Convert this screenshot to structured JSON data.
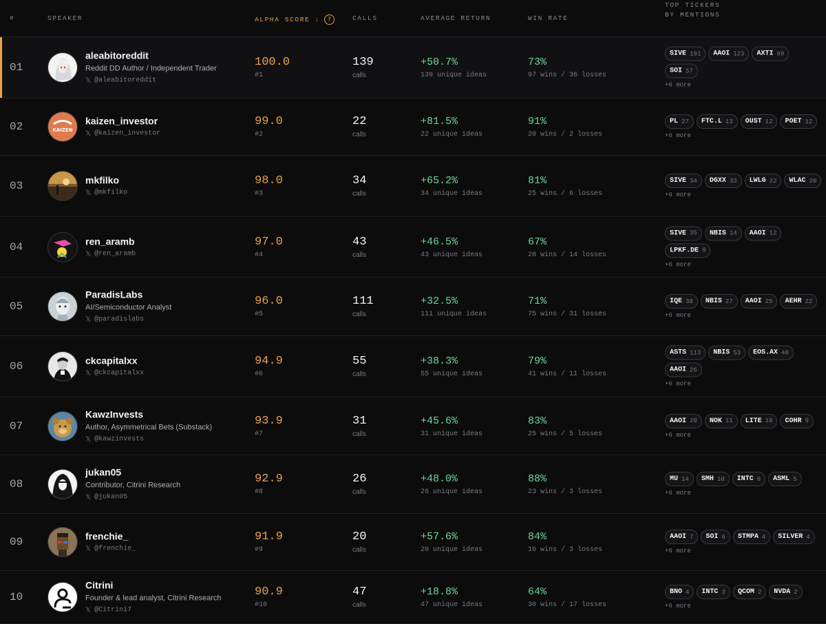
{
  "colors": {
    "accent": "#e9a24a",
    "positive": "#6fd69a",
    "background": "#0c0c0d",
    "muted": "#7b7b80"
  },
  "header": {
    "rank": "#",
    "speaker": "SPEAKER",
    "alpha_score": "ALPHA SCORE ↓",
    "calls": "CALLS",
    "average_return": "AVERAGE RETURN",
    "win_rate": "WIN RATE",
    "top_tickers": "TOP TICKERS",
    "by_mentions": "BY MENTIONS"
  },
  "rows": [
    {
      "rank": "01",
      "name": "aleabitoreddit",
      "desc": "Reddit DD Author / Independent Trader",
      "handle": "@aleabitoreddit",
      "score": "100.0",
      "score_rank": "#1",
      "calls": "139",
      "calls_label": "calls",
      "ret": "+50.7%",
      "ret_sub": "139 unique ideas",
      "win": "73%",
      "win_sub": "97 wins / 36 losses",
      "tickers": [
        {
          "s": "SIVE",
          "n": "191"
        },
        {
          "s": "AAOI",
          "n": "123"
        },
        {
          "s": "AXTI",
          "n": "69"
        },
        {
          "s": "SOI",
          "n": "57"
        }
      ],
      "more": "+6 more"
    },
    {
      "rank": "02",
      "name": "kaizen_investor",
      "desc": "",
      "handle": "@kaizen_investor",
      "score": "99.0",
      "score_rank": "#2",
      "calls": "22",
      "calls_label": "calls",
      "ret": "+81.5%",
      "ret_sub": "22 unique ideas",
      "win": "91%",
      "win_sub": "20 wins / 2 losses",
      "tickers": [
        {
          "s": "PL",
          "n": "27"
        },
        {
          "s": "FTC.L",
          "n": "13"
        },
        {
          "s": "OUST",
          "n": "12"
        },
        {
          "s": "POET",
          "n": "12"
        }
      ],
      "more": "+6 more"
    },
    {
      "rank": "03",
      "name": "mkfilko",
      "desc": "",
      "handle": "@mkfilko",
      "score": "98.0",
      "score_rank": "#3",
      "calls": "34",
      "calls_label": "calls",
      "ret": "+65.2%",
      "ret_sub": "34 unique ideas",
      "win": "81%",
      "win_sub": "25 wins / 6 losses",
      "tickers": [
        {
          "s": "SIVE",
          "n": "34"
        },
        {
          "s": "DGXX",
          "n": "33"
        },
        {
          "s": "LWLG",
          "n": "22"
        },
        {
          "s": "WLAC",
          "n": "20"
        }
      ],
      "more": "+6 more"
    },
    {
      "rank": "04",
      "name": "ren_aramb",
      "desc": "",
      "handle": "@ren_aramb",
      "score": "97.0",
      "score_rank": "#4",
      "calls": "43",
      "calls_label": "calls",
      "ret": "+46.5%",
      "ret_sub": "43 unique ideas",
      "win": "67%",
      "win_sub": "28 wins / 14 losses",
      "tickers": [
        {
          "s": "SIVE",
          "n": "35"
        },
        {
          "s": "NBIS",
          "n": "14"
        },
        {
          "s": "AAOI",
          "n": "12"
        },
        {
          "s": "LPKF.DE",
          "n": "9"
        }
      ],
      "more": "+6 more"
    },
    {
      "rank": "05",
      "name": "ParadisLabs",
      "desc": "AI/Semiconductor Analyst",
      "handle": "@paradislabs",
      "score": "96.0",
      "score_rank": "#5",
      "calls": "111",
      "calls_label": "calls",
      "ret": "+32.5%",
      "ret_sub": "111 unique ideas",
      "win": "71%",
      "win_sub": "75 wins / 31 losses",
      "tickers": [
        {
          "s": "IQE",
          "n": "38"
        },
        {
          "s": "NBIS",
          "n": "27"
        },
        {
          "s": "AAOI",
          "n": "25"
        },
        {
          "s": "AEHR",
          "n": "22"
        }
      ],
      "more": "+6 more"
    },
    {
      "rank": "06",
      "name": "ckcapitalxx",
      "desc": "",
      "handle": "@ckcapitalxx",
      "score": "94.9",
      "score_rank": "#6",
      "calls": "55",
      "calls_label": "calls",
      "ret": "+38.3%",
      "ret_sub": "55 unique ideas",
      "win": "79%",
      "win_sub": "41 wins / 11 losses",
      "tickers": [
        {
          "s": "ASTS",
          "n": "113"
        },
        {
          "s": "NBIS",
          "n": "53"
        },
        {
          "s": "EOS.AX",
          "n": "46"
        },
        {
          "s": "AAOI",
          "n": "26"
        }
      ],
      "more": "+6 more"
    },
    {
      "rank": "07",
      "name": "KawzInvests",
      "desc": "Author, Asymmetrical Bets (Substack)",
      "handle": "@kawzinvests",
      "score": "93.9",
      "score_rank": "#7",
      "calls": "31",
      "calls_label": "calls",
      "ret": "+45.6%",
      "ret_sub": "31 unique ideas",
      "win": "83%",
      "win_sub": "25 wins / 5 losses",
      "tickers": [
        {
          "s": "AAOI",
          "n": "20"
        },
        {
          "s": "NOK",
          "n": "11"
        },
        {
          "s": "LITE",
          "n": "10"
        },
        {
          "s": "COHR",
          "n": "9"
        }
      ],
      "more": "+6 more"
    },
    {
      "rank": "08",
      "name": "jukan05",
      "desc": "Contributor, Citrini Research",
      "handle": "@jukan05",
      "score": "92.9",
      "score_rank": "#8",
      "calls": "26",
      "calls_label": "calls",
      "ret": "+48.0%",
      "ret_sub": "26 unique ideas",
      "win": "88%",
      "win_sub": "23 wins / 3 losses",
      "tickers": [
        {
          "s": "MU",
          "n": "14"
        },
        {
          "s": "SMH",
          "n": "10"
        },
        {
          "s": "INTC",
          "n": "6"
        },
        {
          "s": "ASML",
          "n": "5"
        }
      ],
      "more": "+6 more"
    },
    {
      "rank": "09",
      "name": "frenchie_",
      "desc": "",
      "handle": "@frenchie_",
      "score": "91.9",
      "score_rank": "#9",
      "calls": "20",
      "calls_label": "calls",
      "ret": "+57.6%",
      "ret_sub": "20 unique ideas",
      "win": "84%",
      "win_sub": "16 wins / 3 losses",
      "tickers": [
        {
          "s": "AAOI",
          "n": "7"
        },
        {
          "s": "SOI",
          "n": "6"
        },
        {
          "s": "STMPA",
          "n": "4"
        },
        {
          "s": "SILVER",
          "n": "4"
        }
      ],
      "more": "+6 more"
    },
    {
      "rank": "10",
      "name": "Citrini",
      "desc": "Founder & lead analyst, Citrini Research",
      "handle": "@Citrini7",
      "score": "90.9",
      "score_rank": "#10",
      "calls": "47",
      "calls_label": "calls",
      "ret": "+18.8%",
      "ret_sub": "47 unique ideas",
      "win": "64%",
      "win_sub": "30 wins / 17 losses",
      "tickers": [
        {
          "s": "BNO",
          "n": "4"
        },
        {
          "s": "INTC",
          "n": "3"
        },
        {
          "s": "QCOM",
          "n": "2"
        },
        {
          "s": "NVDA",
          "n": "2"
        }
      ],
      "more": "+6 more"
    }
  ]
}
